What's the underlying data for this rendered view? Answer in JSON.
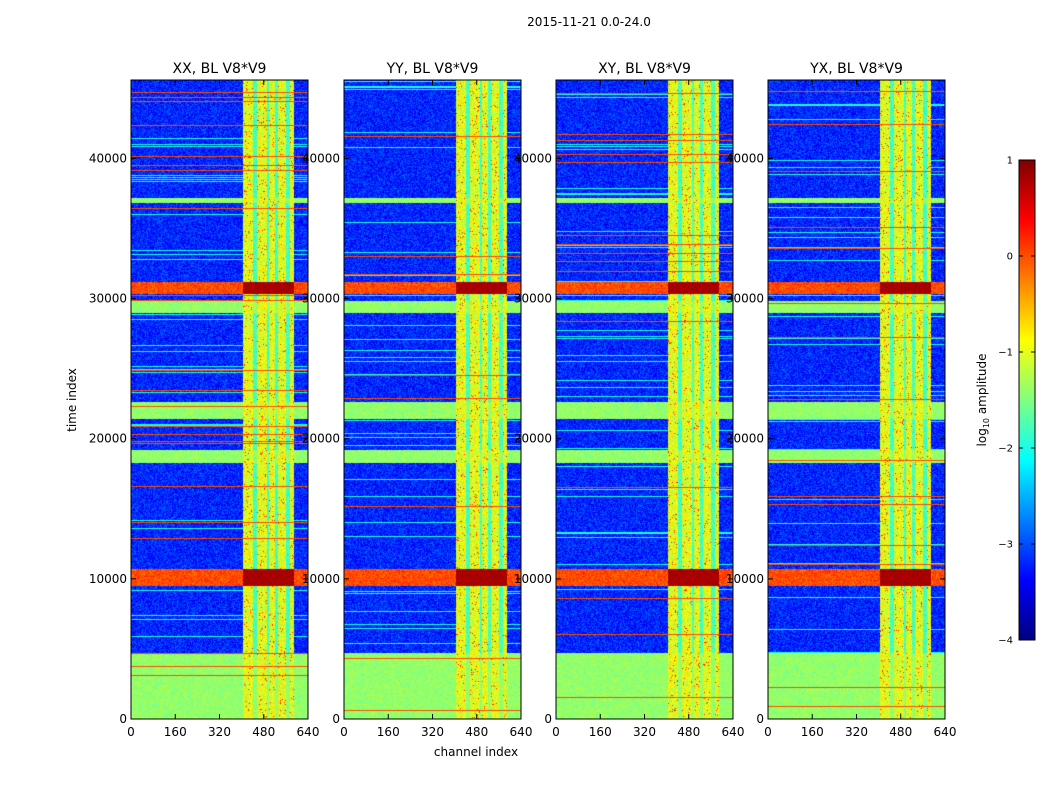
{
  "figure_title": "2015-11-21 0.0-24.0",
  "chart_data": {
    "type": "heatmap",
    "suptitle": "2015-11-21 0.0-24.0",
    "xlabel": "channel index",
    "ylabel": "time index",
    "xlim": [
      0,
      640
    ],
    "ylim": [
      0,
      45600
    ],
    "x_ticks": [
      0,
      160,
      320,
      480,
      640
    ],
    "y_ticks": [
      0,
      10000,
      20000,
      30000,
      40000
    ],
    "x_tick_labels": [
      "0",
      "160",
      "320",
      "480",
      "640"
    ],
    "y_tick_labels": [
      "0",
      "10000",
      "20000",
      "30000",
      "40000"
    ],
    "colormap": "jet",
    "colorbar": {
      "label": "log10 amplitude",
      "label_prefix": "log",
      "label_sub": "10",
      "label_suffix": " amplitude",
      "range": [
        -4,
        1
      ],
      "ticks": [
        1,
        0,
        -1,
        -2,
        -3,
        -4
      ],
      "tick_labels": [
        "1",
        "0",
        "−1",
        "−2",
        "−3",
        "−4"
      ]
    },
    "panels": [
      {
        "title": "XX, BL V8*V9",
        "pol": "XX"
      },
      {
        "title": "YY, BL V8*V9",
        "pol": "YY"
      },
      {
        "title": "XY, BL V8*V9",
        "pol": "XY"
      },
      {
        "title": "YX, BL V8*V9",
        "pol": "YX"
      }
    ],
    "structure": {
      "rfi_band_channels": [
        405,
        590
      ],
      "rfi_columns": [
        [
          405,
          440
        ],
        [
          455,
          490
        ],
        [
          500,
          520
        ],
        [
          530,
          560
        ],
        [
          575,
          590
        ]
      ],
      "background_level": -3.2,
      "band_level": -1.0,
      "hot_time_ranges": [
        [
          9500,
          10700
        ],
        [
          30300,
          31200
        ]
      ],
      "elevated_time_ranges": [
        [
          0,
          4700
        ],
        [
          18300,
          19200
        ],
        [
          21400,
          22600
        ],
        [
          29000,
          29800
        ],
        [
          36800,
          37200
        ]
      ]
    }
  }
}
